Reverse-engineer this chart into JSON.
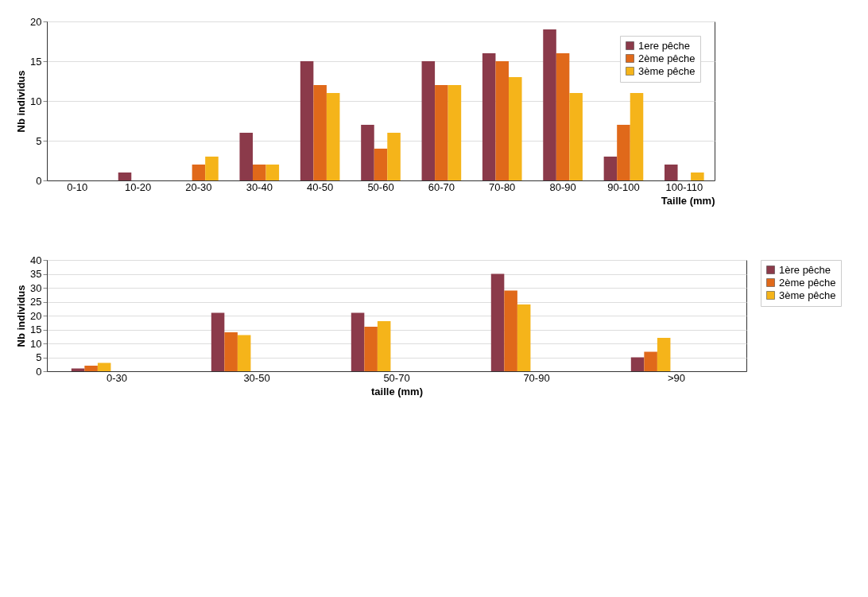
{
  "chart_data": [
    {
      "type": "bar",
      "xlabel": "Taille (mm)",
      "ylabel": "Nb individus",
      "categories": [
        "0-10",
        "10-20",
        "20-30",
        "30-40",
        "40-50",
        "50-60",
        "60-70",
        "70-80",
        "80-90",
        "90-100",
        "100-110"
      ],
      "series": [
        {
          "name": "1ere pêche",
          "color": "#8b3a4a",
          "values": [
            0,
            1,
            0,
            6,
            15,
            7,
            15,
            16,
            19,
            3,
            2
          ]
        },
        {
          "name": "2ème pêche",
          "color": "#e0691a",
          "values": [
            0,
            0,
            2,
            2,
            12,
            4,
            12,
            15,
            16,
            7,
            0
          ]
        },
        {
          "name": "3ème pêche",
          "color": "#f5b41a",
          "values": [
            0,
            0,
            3,
            2,
            11,
            6,
            12,
            13,
            11,
            11,
            1
          ]
        }
      ],
      "ylim": [
        0,
        20
      ],
      "yticks": [
        0,
        5,
        10,
        15,
        20
      ],
      "grid": "y",
      "legend": "top right"
    },
    {
      "type": "bar",
      "xlabel": "taille (mm)",
      "ylabel": "Nb individus",
      "categories": [
        "0-30",
        "30-50",
        "50-70",
        "70-90",
        ">90"
      ],
      "series": [
        {
          "name": "1ère pêche",
          "color": "#8b3a4a",
          "values": [
            1,
            21,
            21,
            35,
            5
          ]
        },
        {
          "name": "2ème pêche",
          "color": "#e0691a",
          "values": [
            2,
            14,
            16,
            29,
            7
          ]
        },
        {
          "name": "3ème pêche",
          "color": "#f5b41a",
          "values": [
            3,
            13,
            18,
            24,
            12
          ]
        }
      ],
      "ylim": [
        0,
        40
      ],
      "yticks": [
        0,
        5,
        10,
        15,
        20,
        25,
        30,
        35,
        40
      ],
      "grid": "y",
      "legend": "right"
    }
  ]
}
